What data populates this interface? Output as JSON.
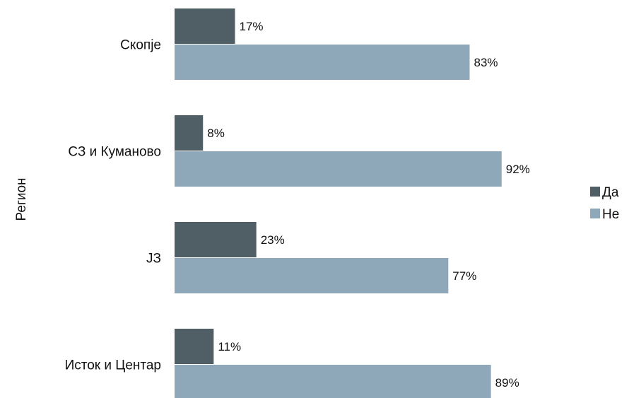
{
  "chart_data": {
    "type": "bar",
    "orientation": "horizontal",
    "ylabel": "Регион",
    "categories": [
      "Скопје",
      "СЗ и Куманово",
      "ЈЗ",
      "Исток и Центар"
    ],
    "series": [
      {
        "name": "Да",
        "color": "#505e66",
        "values": [
          17,
          8,
          23,
          11
        ],
        "labels": [
          "17%",
          "8%",
          "23%",
          "11%"
        ]
      },
      {
        "name": "Не",
        "color": "#8fa8b9",
        "values": [
          83,
          92,
          77,
          89
        ],
        "labels": [
          "83%",
          "92%",
          "77%",
          "89%"
        ]
      }
    ],
    "value_unit": "%",
    "xlim": [
      0,
      100
    ],
    "grid": false,
    "legend_position": "right"
  }
}
